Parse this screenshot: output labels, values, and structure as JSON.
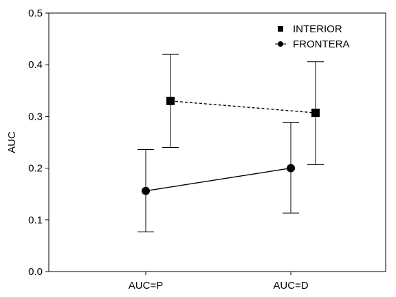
{
  "chart_data": {
    "type": "line",
    "title": "",
    "xlabel": "",
    "ylabel": "AUC",
    "categories": [
      "AUC=P",
      "AUC=D"
    ],
    "ylim": [
      0.0,
      0.5
    ],
    "yticks": [
      "0.0",
      "0.1",
      "0.2",
      "0.3",
      "0.4",
      "0.5"
    ],
    "grid": false,
    "legend_position": "top-right",
    "series": [
      {
        "name": "INTERIOR",
        "marker": "square",
        "line_style": "dashed",
        "values": [
          0.33,
          0.307
        ],
        "error_low": [
          0.24,
          0.207
        ],
        "error_high": [
          0.42,
          0.406
        ]
      },
      {
        "name": "FRONTERA",
        "marker": "circle",
        "line_style": "solid",
        "values": [
          0.156,
          0.2
        ],
        "error_low": [
          0.077,
          0.113
        ],
        "error_high": [
          0.236,
          0.288
        ]
      }
    ]
  }
}
